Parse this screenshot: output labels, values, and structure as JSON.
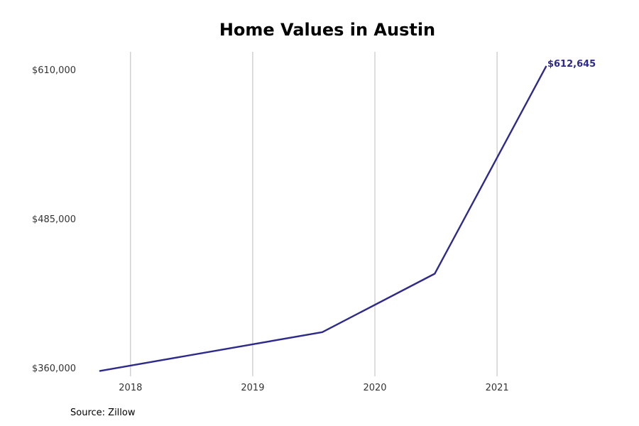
{
  "source_text": "Source: Zillow",
  "chart_data": {
    "type": "line",
    "title": "Home Values in Austin",
    "xlabel": "",
    "ylabel": "",
    "x_ticks": [
      "2018",
      "2019",
      "2020",
      "2021"
    ],
    "y_ticks": [
      "$360,000",
      "$485,000",
      "$610,000"
    ],
    "y_tick_values": [
      360000,
      485000,
      610000
    ],
    "x_tick_values": [
      2018,
      2019,
      2020,
      2021
    ],
    "xlim": [
      2017.6,
      2021.9
    ],
    "ylim": [
      353000,
      625000
    ],
    "grid": "vertical",
    "line_color": "#2e2a8c",
    "series": [
      {
        "points": [
          {
            "x": 2017.75,
            "y": 357500
          },
          {
            "x": 2019.57,
            "y": 390000
          },
          {
            "x": 2020.49,
            "y": 439000
          },
          {
            "x": 2021.4,
            "y": 612645
          }
        ]
      }
    ],
    "end_label": "$612,645"
  }
}
